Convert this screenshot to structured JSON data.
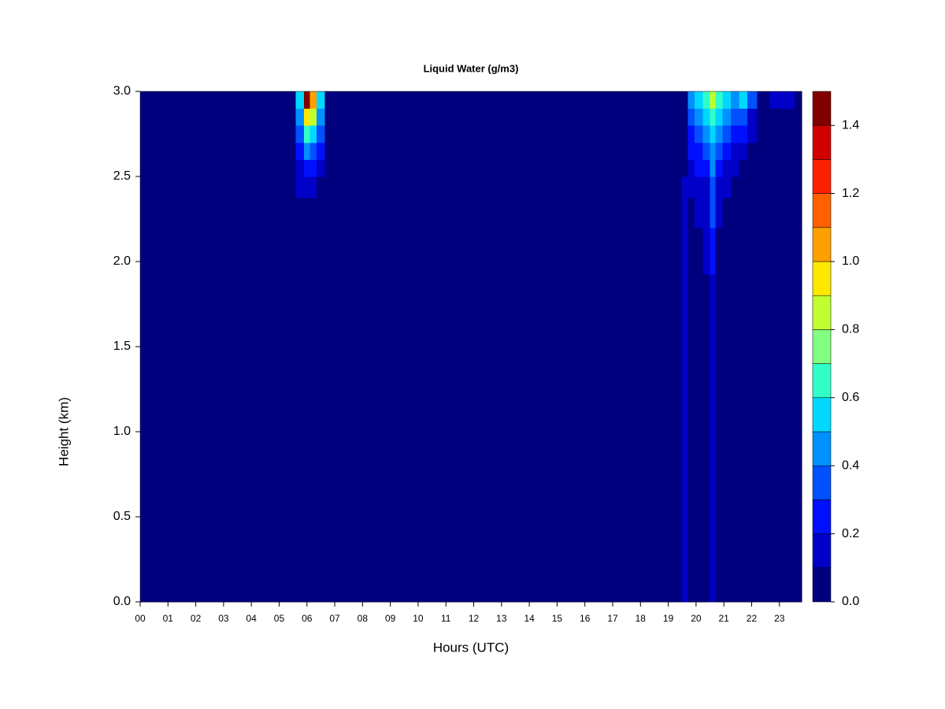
{
  "chart_data": {
    "type": "contour",
    "title": "Liquid Water (g/m3)",
    "x_label": "Hours (UTC)",
    "y_label": "Height (km)",
    "xlim": [
      0,
      23.8
    ],
    "ylim": [
      0,
      3
    ],
    "xticks": [
      {
        "value": 0,
        "label": "00"
      },
      {
        "value": 1,
        "label": "01"
      },
      {
        "value": 2,
        "label": "02"
      },
      {
        "value": 3,
        "label": "03"
      },
      {
        "value": 4,
        "label": "04"
      },
      {
        "value": 5,
        "label": "05"
      },
      {
        "value": 6,
        "label": "06"
      },
      {
        "value": 7,
        "label": "07"
      },
      {
        "value": 8,
        "label": "08"
      },
      {
        "value": 9,
        "label": "09"
      },
      10,
      11,
      12,
      13,
      14,
      15,
      16,
      17,
      18,
      19,
      20,
      21,
      22,
      23
    ],
    "yticks": [
      {
        "value": 0,
        "label": "0.0"
      },
      0.5,
      {
        "value": 1,
        "label": "1.0"
      },
      1.5,
      {
        "value": 2,
        "label": "2.0"
      },
      2.5,
      {
        "value": 3,
        "label": "3.0"
      }
    ],
    "levels": [
      0,
      0.1,
      0.2,
      0.3,
      0.4,
      0.5,
      0.6,
      0.7,
      0.8,
      0.9,
      1.0,
      1.1,
      1.2,
      1.3,
      1.4,
      1.5
    ],
    "colors": [
      "#00007f",
      "#0000c8",
      "#0010ff",
      "#0050ff",
      "#0090ff",
      "#00d8ff",
      "#30ffc8",
      "#80ff80",
      "#c0ff30",
      "#ffe800",
      "#ffa000",
      "#ff6000",
      "#ff2000",
      "#d00000",
      "#800000"
    ],
    "colorbar_ticks": [
      {
        "value": 0,
        "label": "0.0"
      },
      0.2,
      0.4,
      0.6,
      0.8,
      {
        "value": 1,
        "label": "1.0"
      },
      1.2,
      1.4
    ],
    "x": [
      0,
      5.4,
      5.8,
      6.0,
      6.2,
      6.5,
      6.8,
      19.4,
      19.6,
      19.8,
      20.1,
      20.4,
      20.6,
      20.8,
      21.1,
      21.4,
      21.7,
      22.0,
      22.4,
      22.9,
      23.3,
      23.8
    ],
    "y": [
      0.25,
      0.75,
      1.25,
      1.75,
      2.1,
      2.3,
      2.45,
      2.55,
      2.65,
      2.75,
      2.85,
      2.95
    ],
    "z": [
      [
        0,
        0,
        0,
        0,
        0,
        0,
        0,
        0,
        0.12,
        0,
        0,
        0,
        0.1,
        0,
        0,
        0,
        0,
        0,
        0,
        0,
        0,
        0
      ],
      [
        0,
        0,
        0,
        0,
        0,
        0,
        0,
        0,
        0.12,
        0,
        0,
        0,
        0.1,
        0,
        0,
        0,
        0,
        0,
        0,
        0,
        0,
        0
      ],
      [
        0,
        0,
        0,
        0,
        0,
        0,
        0,
        0,
        0.12,
        0,
        0,
        0,
        0.12,
        0,
        0,
        0,
        0,
        0,
        0,
        0,
        0,
        0
      ],
      [
        0,
        0,
        0,
        0,
        0,
        0,
        0,
        0,
        0.1,
        0,
        0,
        0,
        0.15,
        0,
        0,
        0,
        0,
        0,
        0,
        0,
        0,
        0
      ],
      [
        0,
        0,
        0,
        0,
        0,
        0,
        0,
        0,
        0.1,
        0.05,
        0.05,
        0.1,
        0.22,
        0.08,
        0,
        0,
        0,
        0,
        0,
        0,
        0,
        0
      ],
      [
        0,
        0,
        0,
        0.05,
        0,
        0,
        0,
        0,
        0.1,
        0.08,
        0.12,
        0.15,
        0.3,
        0.15,
        0.08,
        0,
        0,
        0,
        0,
        0,
        0,
        0
      ],
      [
        0,
        0,
        0.1,
        0.15,
        0.12,
        0.05,
        0,
        0,
        0.1,
        0.12,
        0.15,
        0.18,
        0.35,
        0.18,
        0.12,
        0.05,
        0,
        0,
        0,
        0,
        0,
        0
      ],
      [
        0,
        0,
        0.15,
        0.25,
        0.22,
        0.12,
        0,
        0,
        0,
        0.15,
        0.2,
        0.22,
        0.4,
        0.25,
        0.15,
        0.1,
        0.05,
        0,
        0,
        0,
        0,
        0
      ],
      [
        0,
        0,
        0.25,
        0.4,
        0.35,
        0.2,
        0.05,
        0,
        0,
        0.2,
        0.25,
        0.3,
        0.45,
        0.3,
        0.22,
        0.15,
        0.12,
        0.05,
        0,
        0,
        0,
        0
      ],
      [
        0,
        0,
        0.35,
        0.6,
        0.55,
        0.3,
        0.05,
        0,
        0,
        0.25,
        0.35,
        0.4,
        0.5,
        0.4,
        0.3,
        0.25,
        0.2,
        0.1,
        0,
        0,
        0,
        0
      ],
      [
        0,
        0,
        0.45,
        0.9,
        0.8,
        0.4,
        0.05,
        0,
        0,
        0.35,
        0.45,
        0.5,
        0.6,
        0.5,
        0.45,
        0.35,
        0.3,
        0.15,
        0,
        0.05,
        0,
        0
      ],
      [
        0,
        0,
        0.5,
        1.45,
        1.0,
        0.5,
        0.05,
        0,
        0,
        0.4,
        0.55,
        0.6,
        0.8,
        0.65,
        0.55,
        0.45,
        0.5,
        0.3,
        0.05,
        0.15,
        0.1,
        0
      ]
    ]
  }
}
